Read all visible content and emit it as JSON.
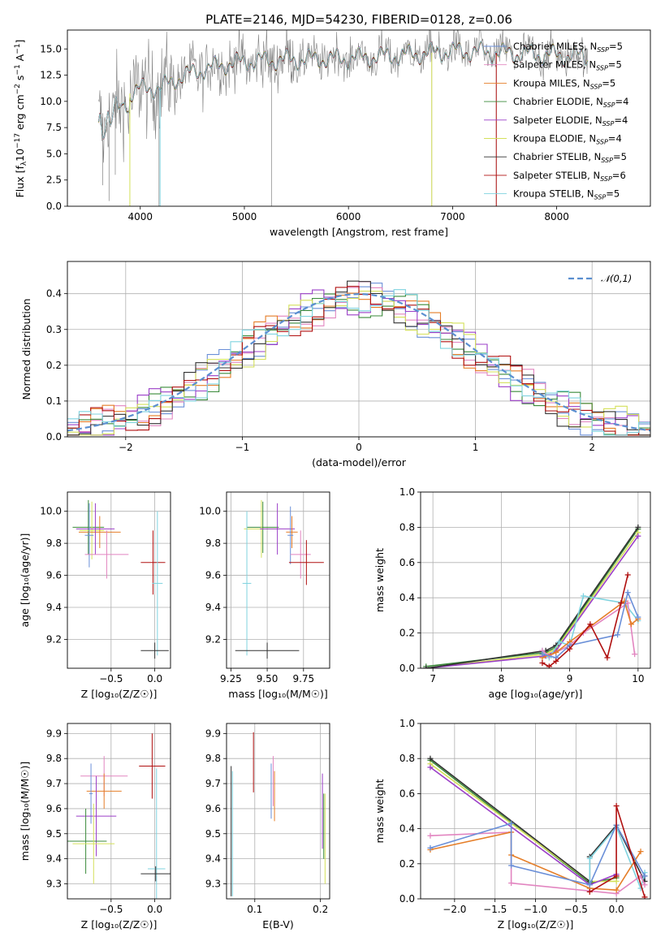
{
  "colors": {
    "Chabrier MILES": "#6a8fd8",
    "Salpeter MILES": "#e285c0",
    "Kroupa MILES": "#e57e28",
    "Chabrier ELODIE": "#3a8a3a",
    "Salpeter ELODIE": "#9b3fc8",
    "Kroupa ELODIE": "#d4e05a",
    "Chabrier STELIB": "#333333",
    "Salpeter STELIB": "#b01010",
    "Kroupa STELIB": "#7fd3df",
    "data": "#808080",
    "normal": "#5b8fd0"
  },
  "chart_data": [
    {
      "id": "spectrum",
      "type": "line",
      "title": "PLATE=2146, MJD=54230, FIBERID=0128, z=0.06",
      "xlabel": "wavelength [Angstrom, rest frame]",
      "ylabel_parts": [
        "Flux [f",
        "λ",
        "10",
        "−17",
        " erg cm",
        "−2",
        " s",
        "−1",
        " A",
        "−1",
        "]"
      ],
      "xlim": [
        3300,
        8900
      ],
      "ylim": [
        0,
        16.8
      ],
      "xticks": [
        4000,
        5000,
        6000,
        7000,
        8000
      ],
      "yticks": [
        0.0,
        2.5,
        5.0,
        7.5,
        10.0,
        12.5,
        15.0
      ],
      "grid": false,
      "legend_position": "right",
      "legend": [
        {
          "name": "Chabrier MILES",
          "nssp": "5"
        },
        {
          "name": "Salpeter MILES",
          "nssp": "5"
        },
        {
          "name": "Kroupa MILES",
          "nssp": "5"
        },
        {
          "name": "Chabrier ELODIE",
          "nssp": "4"
        },
        {
          "name": "Salpeter ELODIE",
          "nssp": "4"
        },
        {
          "name": "Kroupa ELODIE",
          "nssp": "4"
        },
        {
          "name": "Chabrier STELIB",
          "nssp": "5"
        },
        {
          "name": "Salpeter STELIB",
          "nssp": "6"
        },
        {
          "name": "Kroupa STELIB",
          "nssp": "5"
        }
      ],
      "continuum": [
        [
          3600,
          8.5
        ],
        [
          3800,
          10.3
        ],
        [
          4000,
          11.2
        ],
        [
          4200,
          11.3
        ],
        [
          4400,
          12.4
        ],
        [
          4600,
          13.0
        ],
        [
          4800,
          13.5
        ],
        [
          5000,
          13.8
        ],
        [
          5500,
          14.0
        ],
        [
          6000,
          14.1
        ],
        [
          6500,
          14.4
        ],
        [
          7000,
          14.8
        ],
        [
          7500,
          14.6
        ],
        [
          8000,
          14.4
        ],
        [
          8300,
          14.3
        ]
      ]
    },
    {
      "id": "residuals",
      "type": "line",
      "xlabel": "(data-model)/error",
      "ylabel": "Normed distribution",
      "xlim": [
        -2.5,
        2.5
      ],
      "ylim": [
        0,
        0.49
      ],
      "xticks": [
        -2,
        -1,
        0,
        1,
        2
      ],
      "yticks": [
        0.0,
        0.1,
        0.2,
        0.3,
        0.4
      ],
      "grid": true,
      "legend_position": "top-right",
      "legend_label": "𝒩(0,1)"
    },
    {
      "id": "age-vs-Z",
      "type": "scatter",
      "xlabel": "Z [log₁₀(Z/Z☉)]",
      "ylabel": "age  [log₁₀(age/yr)]",
      "xlim": [
        -1.0,
        0.18
      ],
      "ylim": [
        9.02,
        10.12
      ],
      "xticks": [
        -0.5,
        0.0
      ],
      "yticks": [
        9.2,
        9.4,
        9.6,
        9.8,
        10.0
      ],
      "grid": true,
      "points": [
        {
          "model": "Chabrier ELODIE",
          "x": -0.76,
          "xerr": 0.18,
          "y": 9.9,
          "yerr": 0.17
        },
        {
          "model": "Kroupa ELODIE",
          "x": -0.72,
          "xerr": 0.14,
          "y": 9.88,
          "yerr": 0.18
        },
        {
          "model": "Kroupa MILES",
          "x": -0.63,
          "xerr": 0.24,
          "y": 9.87,
          "yerr": 0.1
        },
        {
          "model": "Salpeter ELODIE",
          "x": -0.68,
          "xerr": 0.22,
          "y": 9.89,
          "yerr": 0.16
        },
        {
          "model": "Chabrier MILES",
          "x": -0.75,
          "xerr": 0.05,
          "y": 9.85,
          "yerr": 0.2
        },
        {
          "model": "Salpeter MILES",
          "x": -0.55,
          "xerr": 0.25,
          "y": 9.73,
          "yerr": 0.15
        },
        {
          "model": "Salpeter STELIB",
          "x": -0.02,
          "xerr": 0.14,
          "y": 9.68,
          "yerr": 0.2
        },
        {
          "model": "Kroupa STELIB",
          "x": 0.03,
          "xerr": 0.06,
          "y": 9.55,
          "yerr": 0.45
        },
        {
          "model": "Chabrier STELIB",
          "x": 0.0,
          "xerr": 0.16,
          "y": 9.13,
          "yerr": 0.05
        }
      ]
    },
    {
      "id": "age-vs-mass",
      "type": "scatter",
      "xlabel": "mass [log₁₀(M/M☉)]",
      "xlim": [
        9.22,
        9.93
      ],
      "ylim": [
        9.02,
        10.12
      ],
      "xticks": [
        9.25,
        9.5,
        9.75
      ],
      "yticks": [
        9.2,
        9.4,
        9.6,
        9.8,
        10.0
      ],
      "grid": true,
      "points": [
        {
          "model": "Chabrier ELODIE",
          "x": 9.47,
          "xerr": 0.11,
          "y": 9.9,
          "yerr": 0.16
        },
        {
          "model": "Kroupa ELODIE",
          "x": 9.46,
          "xerr": 0.12,
          "y": 9.89,
          "yerr": 0.18
        },
        {
          "model": "Salpeter ELODIE",
          "x": 9.57,
          "xerr": 0.12,
          "y": 9.89,
          "yerr": 0.16
        },
        {
          "model": "Kroupa MILES",
          "x": 9.67,
          "xerr": 0.04,
          "y": 9.87,
          "yerr": 0.1
        },
        {
          "model": "Chabrier MILES",
          "x": 9.66,
          "xerr": 0.02,
          "y": 9.85,
          "yerr": 0.18
        },
        {
          "model": "Salpeter MILES",
          "x": 9.73,
          "xerr": 0.07,
          "y": 9.73,
          "yerr": 0.15
        },
        {
          "model": "Salpeter STELIB",
          "x": 9.77,
          "xerr": 0.12,
          "y": 9.68,
          "yerr": 0.14
        },
        {
          "model": "Kroupa STELIB",
          "x": 9.36,
          "xerr": 0.03,
          "y": 9.55,
          "yerr": 0.45
        },
        {
          "model": "Chabrier STELIB",
          "x": 9.5,
          "xerr": 0.22,
          "y": 9.13,
          "yerr": 0.05
        }
      ]
    },
    {
      "id": "weight-vs-age",
      "type": "line",
      "xlabel": "age  [log₁₀(age/yr)]",
      "ylabel": "mass weight",
      "xlim": [
        6.82,
        10.18
      ],
      "ylim": [
        0,
        1.0
      ],
      "xticks": [
        7,
        8,
        9,
        10
      ],
      "yticks": [
        0.0,
        0.2,
        0.4,
        0.6,
        0.8,
        1.0
      ],
      "grid": true,
      "series": [
        {
          "model": "Chabrier ELODIE",
          "x": [
            6.9,
            8.65,
            8.8,
            10.0
          ],
          "y": [
            0.01,
            0.09,
            0.12,
            0.79
          ]
        },
        {
          "model": "Kroupa ELODIE",
          "x": [
            6.9,
            8.65,
            8.8,
            10.0
          ],
          "y": [
            0.0,
            0.08,
            0.11,
            0.77
          ]
        },
        {
          "model": "Salpeter ELODIE",
          "x": [
            6.9,
            8.65,
            8.8,
            10.0
          ],
          "y": [
            0.0,
            0.07,
            0.1,
            0.75
          ]
        },
        {
          "model": "Chabrier STELIB",
          "x": [
            6.9,
            8.65,
            8.8,
            10.0
          ],
          "y": [
            0.0,
            0.1,
            0.13,
            0.8
          ]
        },
        {
          "model": "Kroupa STELIB",
          "x": [
            8.6,
            8.7,
            8.85,
            9.0,
            9.2,
            9.8,
            10.0
          ],
          "y": [
            0.1,
            0.06,
            0.15,
            0.13,
            0.41,
            0.37,
            0.27
          ]
        },
        {
          "model": "Salpeter MILES",
          "x": [
            8.6,
            8.7,
            9.0,
            9.2,
            9.85,
            9.95
          ],
          "y": [
            0.1,
            0.07,
            0.13,
            0.2,
            0.37,
            0.08
          ]
        },
        {
          "model": "Kroupa MILES",
          "x": [
            8.6,
            8.8,
            9.0,
            9.8,
            9.9,
            10.0
          ],
          "y": [
            0.06,
            0.09,
            0.15,
            0.38,
            0.25,
            0.28
          ]
        },
        {
          "model": "Chabrier MILES",
          "x": [
            8.6,
            8.8,
            9.0,
            9.7,
            9.85,
            10.0
          ],
          "y": [
            0.08,
            0.06,
            0.13,
            0.19,
            0.43,
            0.29
          ]
        },
        {
          "model": "Salpeter STELIB",
          "x": [
            8.6,
            8.7,
            8.8,
            9.0,
            9.3,
            9.55,
            9.75,
            9.85
          ],
          "y": [
            0.03,
            0.01,
            0.04,
            0.11,
            0.25,
            0.06,
            0.37,
            0.53
          ]
        }
      ]
    },
    {
      "id": "mass-vs-Z",
      "type": "scatter",
      "xlabel": "Z [log₁₀(Z/Z☉)]",
      "ylabel": "mass [log₁₀(M/M☉)]",
      "xlim": [
        -1.0,
        0.18
      ],
      "ylim": [
        9.24,
        9.94
      ],
      "xticks": [
        -0.5,
        0.0
      ],
      "yticks": [
        9.3,
        9.4,
        9.5,
        9.6,
        9.7,
        9.8,
        9.9
      ],
      "grid": true,
      "points": [
        {
          "model": "Salpeter STELIB",
          "x": -0.03,
          "xerr": 0.15,
          "y": 9.77,
          "yerr": 0.13
        },
        {
          "model": "Salpeter MILES",
          "x": -0.58,
          "xerr": 0.27,
          "y": 9.73,
          "yerr": 0.08
        },
        {
          "model": "Kroupa MILES",
          "x": -0.58,
          "xerr": 0.2,
          "y": 9.67,
          "yerr": 0.07
        },
        {
          "model": "Chabrier MILES",
          "x": -0.73,
          "xerr": 0.02,
          "y": 9.66,
          "yerr": 0.12
        },
        {
          "model": "Salpeter ELODIE",
          "x": -0.67,
          "xerr": 0.23,
          "y": 9.57,
          "yerr": 0.16
        },
        {
          "model": "Chabrier ELODIE",
          "x": -0.79,
          "xerr": 0.24,
          "y": 9.47,
          "yerr": 0.13
        },
        {
          "model": "Kroupa ELODIE",
          "x": -0.7,
          "xerr": 0.24,
          "y": 9.46,
          "yerr": 0.16
        },
        {
          "model": "Kroupa STELIB",
          "x": 0.02,
          "xerr": 0.1,
          "y": 9.36,
          "yerr": 0.4
        },
        {
          "model": "Chabrier STELIB",
          "x": 0.01,
          "xerr": 0.17,
          "y": 9.34,
          "yerr": 0.03
        }
      ]
    },
    {
      "id": "mass-vs-ebv",
      "type": "scatter",
      "xlabel": "E(B-V)",
      "xlim": [
        0.057,
        0.214
      ],
      "ylim": [
        9.24,
        9.94
      ],
      "xticks": [
        0.1,
        0.2
      ],
      "yticks": [
        9.3,
        9.4,
        9.5,
        9.6,
        9.7,
        9.8,
        9.9
      ],
      "grid": true,
      "points": [
        {
          "model": "Salpeter STELIB",
          "x": 0.098,
          "y": 9.785,
          "yerr": 0.12
        },
        {
          "model": "Chabrier MILES",
          "x": 0.125,
          "y": 9.67,
          "yerr": 0.11
        },
        {
          "model": "Salpeter MILES",
          "x": 0.128,
          "y": 9.71,
          "yerr": 0.1
        },
        {
          "model": "Kroupa MILES",
          "x": 0.13,
          "y": 9.65,
          "yerr": 0.1
        },
        {
          "model": "Salpeter ELODIE",
          "x": 0.203,
          "y": 9.59,
          "yerr": 0.15
        },
        {
          "model": "Chabrier ELODIE",
          "x": 0.205,
          "y": 9.53,
          "yerr": 0.13
        },
        {
          "model": "Kroupa ELODIE",
          "x": 0.207,
          "y": 9.48,
          "yerr": 0.18
        },
        {
          "model": "Kroupa STELIB",
          "x": 0.066,
          "y": 9.5,
          "yerr": 0.25
        },
        {
          "model": "Chabrier STELIB",
          "x": 0.064,
          "y": 9.51,
          "yerr": 0.26
        }
      ]
    },
    {
      "id": "weight-vs-Z",
      "type": "line",
      "xlabel": "Z [log₁₀(Z/Z☉)]",
      "ylabel": "mass weight",
      "xlim": [
        -2.42,
        0.42
      ],
      "ylim": [
        0,
        1.0
      ],
      "xticks": [
        -2.0,
        -1.5,
        -1.0,
        -0.5,
        0.0
      ],
      "yticks": [
        0.0,
        0.2,
        0.4,
        0.6,
        0.8,
        1.0
      ],
      "grid": true,
      "series": [
        {
          "model": "Chabrier ELODIE",
          "x": [
            -2.3,
            -0.33,
            0.0
          ],
          "y": [
            0.79,
            0.09,
            0.12
          ]
        },
        {
          "model": "Kroupa ELODIE",
          "x": [
            -2.3,
            -0.33,
            0.0
          ],
          "y": [
            0.77,
            0.1,
            0.1
          ]
        },
        {
          "model": "Salpeter ELODIE",
          "x": [
            -2.3,
            -0.33,
            0.0
          ],
          "y": [
            0.75,
            0.08,
            0.14
          ]
        },
        {
          "model": "Chabrier STELIB",
          "x": [
            -2.3,
            -0.33,
            -0.33,
            0.0,
            0.35,
            0.35
          ],
          "y": [
            0.8,
            0.1,
            0.24,
            0.42,
            0.1,
            0.13
          ]
        },
        {
          "model": "Kroupa STELIB",
          "x": [
            -0.33,
            -0.33,
            0.0,
            0.3,
            0.35
          ],
          "y": [
            0.06,
            0.23,
            0.41,
            0.06,
            0.15
          ]
        },
        {
          "model": "Salpeter MILES",
          "x": [
            -2.3,
            -1.3,
            -1.3,
            0.0,
            0.3,
            0.35
          ],
          "y": [
            0.36,
            0.38,
            0.09,
            0.03,
            0.13,
            0.08
          ]
        },
        {
          "model": "Kroupa MILES",
          "x": [
            -2.3,
            -1.3,
            -1.3,
            -0.33,
            0.0,
            0.3
          ],
          "y": [
            0.28,
            0.38,
            0.25,
            0.06,
            0.05,
            0.27
          ]
        },
        {
          "model": "Chabrier MILES",
          "x": [
            -2.3,
            -1.3,
            -1.3,
            -0.33,
            0.0,
            0.35
          ],
          "y": [
            0.29,
            0.43,
            0.19,
            0.08,
            0.42,
            0.13
          ]
        },
        {
          "model": "Salpeter STELIB",
          "x": [
            -0.33,
            0.0,
            0.0,
            0.35
          ],
          "y": [
            0.04,
            0.13,
            0.53,
            0.01
          ]
        }
      ]
    }
  ]
}
